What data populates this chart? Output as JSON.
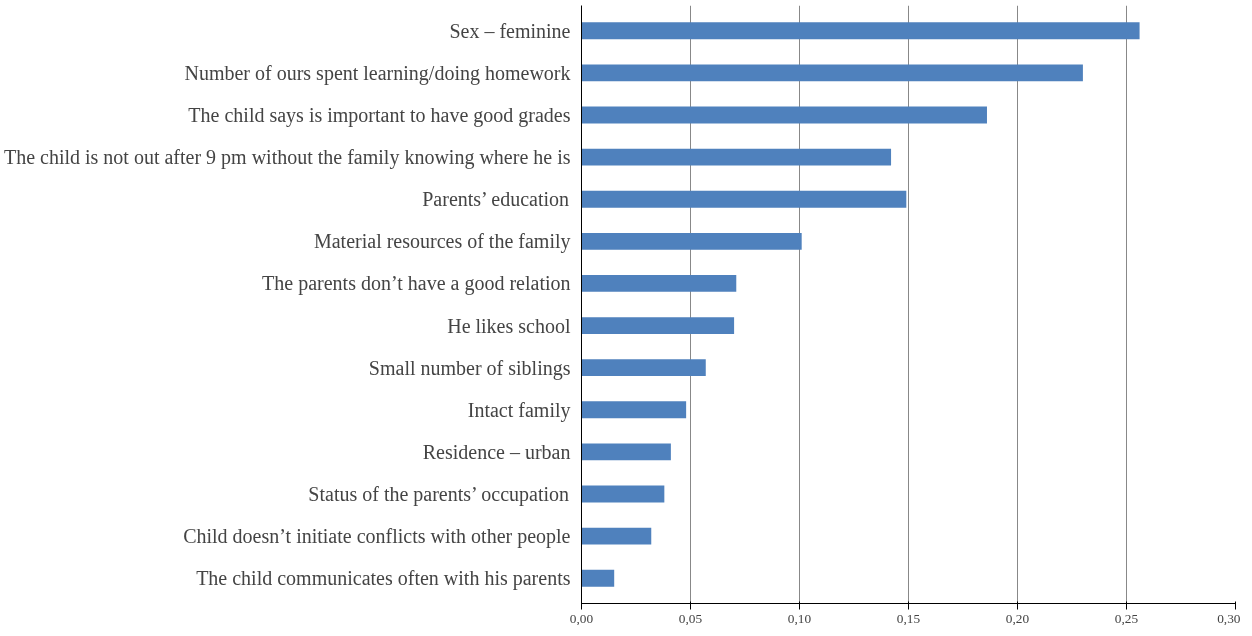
{
  "chart_data": {
    "type": "bar",
    "orientation": "horizontal",
    "categories": [
      "Sex – feminine",
      "Number of ours spent learning/doing homework",
      "The child says is important to have good grades",
      "The child is not out after 9 pm without the family knowing where he is",
      "Parents’ education",
      "Material resources of the family",
      "The parents don’t have a good relation",
      "He likes school",
      "Small number of siblings",
      "Intact family",
      "Residence – urban",
      "Status of the parents’ occupation",
      "Child doesn’t initiate conflicts with other people",
      "The child communicates often with his parents"
    ],
    "values": [
      0.256,
      0.23,
      0.186,
      0.142,
      0.149,
      0.101,
      0.071,
      0.07,
      0.057,
      0.048,
      0.041,
      0.038,
      0.032,
      0.015
    ],
    "color": "#4f81bd",
    "xlim": [
      0,
      0.3
    ],
    "xticks": [
      {
        "value": 0,
        "label": "0,00"
      },
      {
        "value": 0.05,
        "label": "0,05"
      },
      {
        "value": 0.1,
        "label": "0,10"
      },
      {
        "value": 0.15,
        "label": "0,15"
      },
      {
        "value": 0.2,
        "label": "0,20"
      },
      {
        "value": 0.25,
        "label": "0,25"
      },
      {
        "value": 0.3,
        "label": "0,30"
      }
    ],
    "grid": "x"
  }
}
